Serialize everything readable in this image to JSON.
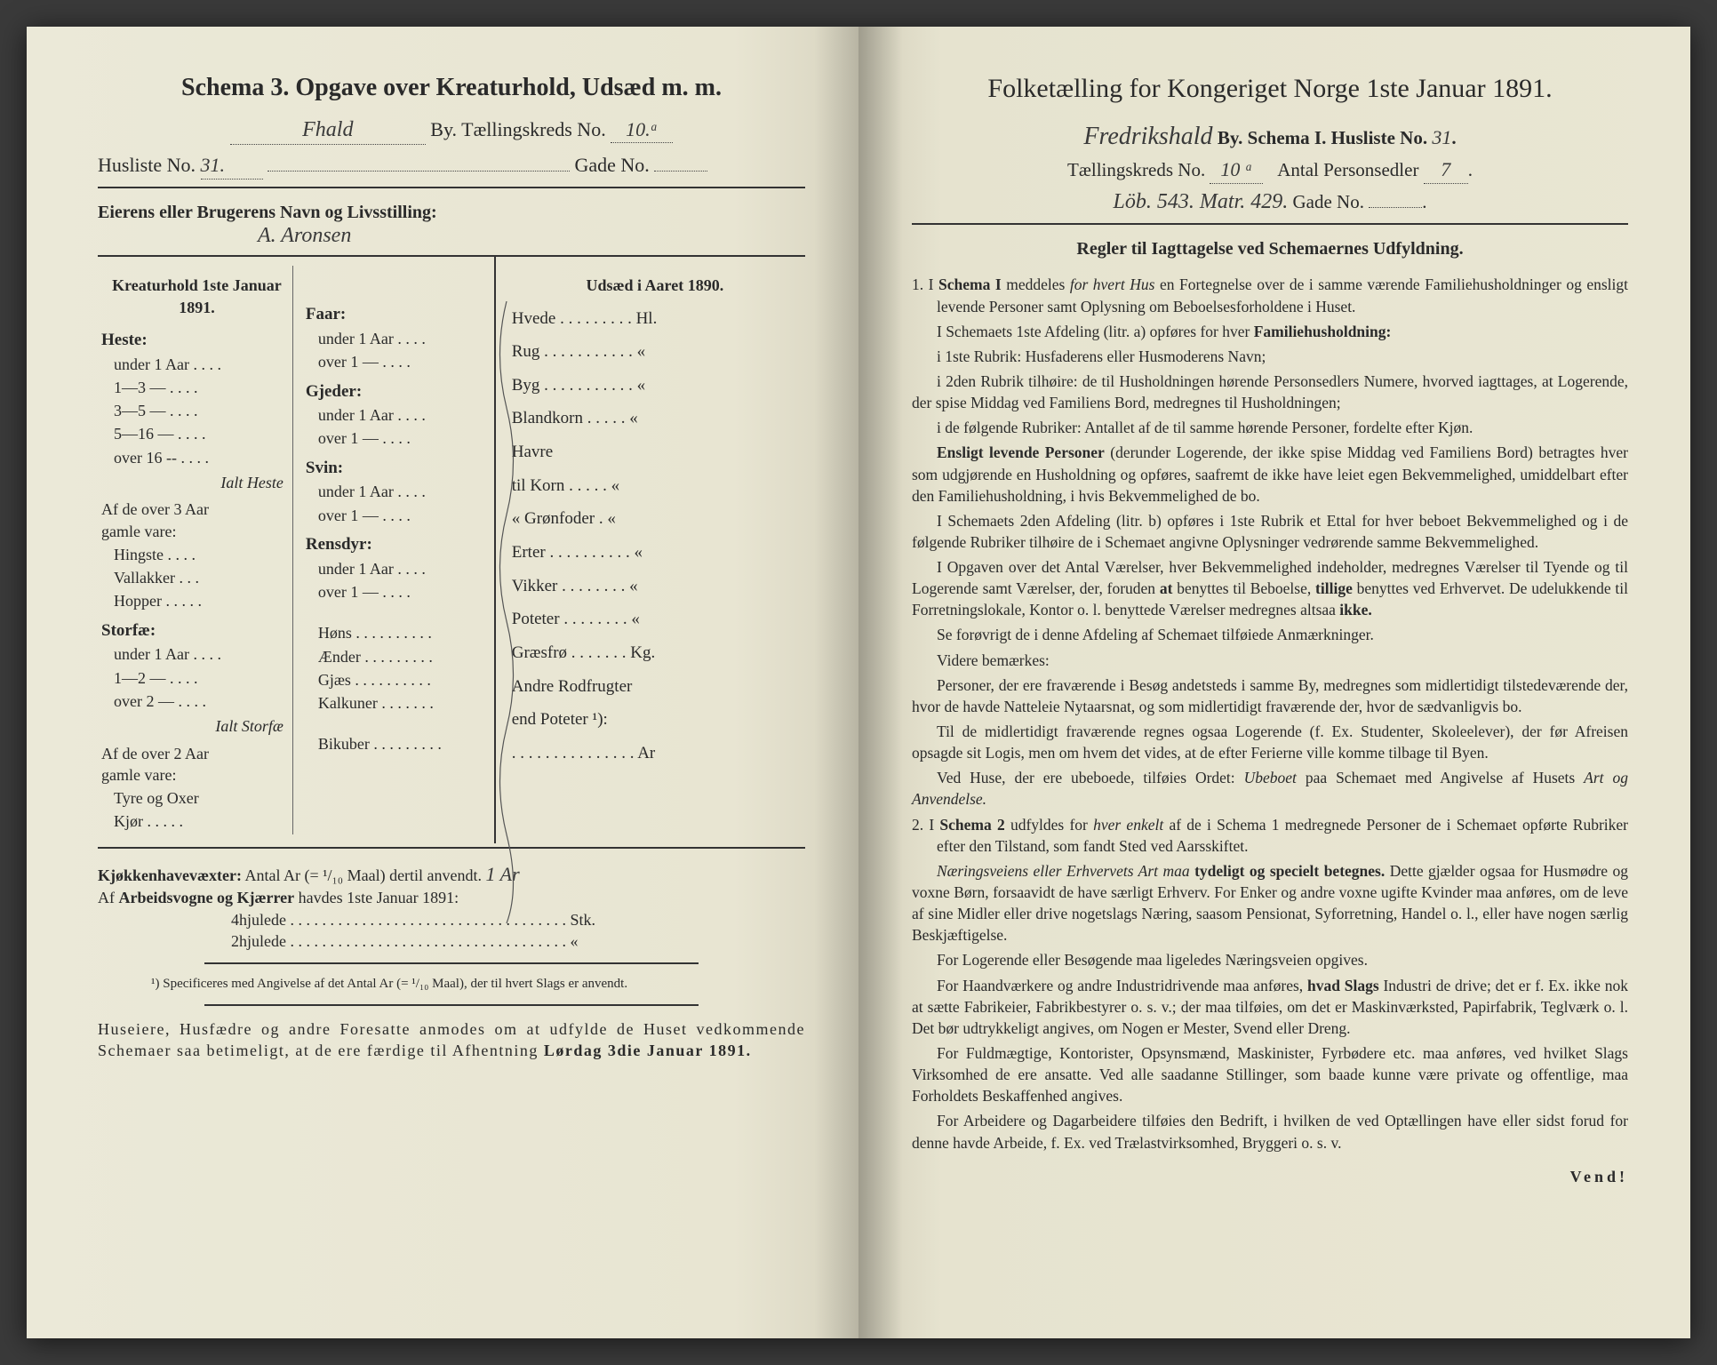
{
  "colors": {
    "paper_left": "#e8e5d2",
    "paper_right": "#e9e6d3",
    "ink": "#2a2a2a",
    "background": "#3a3a3a"
  },
  "left": {
    "title": "Schema 3.  Opgave over Kreaturhold, Udsæd m. m.",
    "by_hand": "Fhald",
    "by_label": "By.  Tællingskreds No.",
    "kreds_no": "10.ᵃ",
    "husliste_label": "Husliste No.",
    "husliste_no": "31.",
    "gade_label": "Gade No.",
    "owner_label": "Eierens eller Brugerens Navn og Livsstilling:",
    "owner_hand": "A. Aronsen",
    "colhead_left": "Kreaturhold 1ste Januar 1891.",
    "colhead_right": "Udsæd i Aaret 1890.",
    "cats_left_a": [
      {
        "h": "Heste:",
        "rows": [
          "under 1 Aar . . . .",
          "1—3   —   . . . .",
          "3—5   —   . . . .",
          "5—16 —   . . . .",
          "over 16 --   . . . ."
        ]
      },
      {
        "ital": "Ialt Heste"
      },
      {
        "plain": "Af de over 3 Aar"
      },
      {
        "plain": "gamle vare:"
      },
      {
        "rows": [
          "Hingste . . . .",
          "Vallakker . . .",
          "Hopper . . . . ."
        ]
      },
      {
        "h": "Storfæ:",
        "rows": [
          "under 1 Aar . . . .",
          "1—2   —   . . . .",
          "over 2   —   . . . ."
        ]
      },
      {
        "ital": "Ialt Storfæ"
      },
      {
        "plain": "Af de over 2 Aar"
      },
      {
        "plain": "gamle vare:"
      },
      {
        "rows": [
          "Tyre og Oxer",
          "Kjør . . . . ."
        ]
      }
    ],
    "cats_left_b": [
      {
        "h": "Faar:",
        "rows": [
          "under 1 Aar . . . .",
          "over 1   —   . . . ."
        ]
      },
      {
        "h": "Gjeder:",
        "rows": [
          "under 1 Aar . . . .",
          "over 1   —   . . . ."
        ]
      },
      {
        "h": "Svin:",
        "rows": [
          "under 1 Aar . . . .",
          "over 1   —   . . . ."
        ]
      },
      {
        "h": "Rensdyr:",
        "rows": [
          "under 1 Aar . . . .",
          "over 1   —   . . . ."
        ]
      },
      {
        "gap": true
      },
      {
        "rows": [
          "Høns . . . . . . . . . .",
          "Ænder . . . . . . . . .",
          "Gjæs . . . . . . . . . .",
          "Kalkuner . . . . . . ."
        ]
      },
      {
        "gap": true
      },
      {
        "rows": [
          "Bikuber . . . . . . . . ."
        ]
      }
    ],
    "udsaed": [
      "Hvede . . . . . . . . . Hl.",
      "Rug . . . . . . . . . . .  «",
      "Byg . . . . . . . . . . .  «",
      "Blandkorn . . . . .  «",
      "Havre",
      "   til Korn . . . . .  «",
      "   «   Grønfoder .  «",
      "Erter . . . . . . . . . .  «",
      "Vikker  . . . . . . . .  «",
      "Poteter . . . . . . . .  «",
      "Græsfrø . . . . . . . Kg.",
      "Andre Rodfrugter",
      "end Poteter ¹):",
      ". . . . . . . . . . . . . . . Ar"
    ],
    "kjokken_label": "Kjøkkenhavevæxter:",
    "kjokken_text": "Antal Ar (= ¹/₁₀ Maal) dertil anvendt.",
    "kjokken_hand": "1 Ar",
    "arbeid_label": "Af Arbeidsvogne og Kjærrer havdes 1ste Januar 1891:",
    "hjul4": "4hjulede . . . . . . . . . . . . . . . . . . . . . . . . . . . . . . . . . . . Stk.",
    "hjul2": "2hjulede . . . . . . . . . . . . . . . . . . . . . . . . . . . . . . . . . . .  «",
    "footnote": "¹) Specificeres med Angivelse af det Antal Ar (= ¹/₁₀ Maal), der til hvert Slags er anvendt.",
    "bottom1": "Huseiere, Husfædre og andre Foresatte anmodes om at udfylde de Huset vedkommende Schemaer saa betimeligt, at de ere færdige til Afhentning",
    "bottom2": "Lørdag 3die Januar 1891."
  },
  "right": {
    "title": "Folketælling for Kongeriget Norge 1ste Januar 1891.",
    "line1_hand": "Fredrikshald",
    "line1_rest": "By.  Schema I.  Husliste No.",
    "husliste_no": "31",
    "line2a": "Tællingskreds No.",
    "kreds_no": "10 ᵃ",
    "line2b": "Antal Personsedler",
    "pers_no": "7",
    "line3_hand": "Löb. 543. Matr. 429.",
    "line3_rest": "Gade No.",
    "rules_head": "Regler til Iagttagelse ved Schemaernes Udfyldning.",
    "paras": [
      {
        "n": "1.",
        "t": "I <b>Schema I</b> meddeles <i>for hvert Hus</i> en Fortegnelse over de i samme værende Familiehusholdninger og ensligt levende Personer samt Oplysning om Beboelsesforholdene i Huset."
      },
      {
        "t": "I Schemaets 1ste Afdeling (litr. a) opføres for hver <b>Familiehusholdning:</b>"
      },
      {
        "t": "i 1ste Rubrik: Husfaderens eller Husmoderens Navn;"
      },
      {
        "t": "i 2den Rubrik tilhøire: de til Husholdningen hørende Personsedlers Numere, hvorved iagttages, at Logerende, der spise Middag ved Familiens Bord, medregnes til Husholdningen;"
      },
      {
        "t": "i de følgende Rubriker: Antallet af de til samme hørende Personer, fordelte efter Kjøn."
      },
      {
        "t": "<b>Ensligt levende Personer</b> (derunder Logerende, der ikke spise Middag ved Familiens Bord) betragtes hver som udgjørende en Husholdning og opføres, saafremt de ikke have leiet egen Bekvemmelighed, umiddelbart efter den Familiehusholdning, i hvis Bekvemmelighed de bo."
      },
      {
        "t": "I Schemaets 2den Afdeling (litr. b) opføres i 1ste Rubrik et Ettal for hver beboet Bekvemmelighed og i de følgende Rubriker tilhøire de i Schemaet angivne Oplysninger vedrørende samme Bekvemmelighed."
      },
      {
        "t": "I Opgaven over det Antal Værelser, hver Bekvemmelighed indeholder, medregnes Værelser til Tyende og til Logerende samt Værelser, der, foruden <b>at</b> benyttes til Beboelse, <b>tillige</b> benyttes ved Erhvervet.  De udelukkende til Forretningslokale, Kontor o. l. benyttede Værelser medregnes altsaa <b>ikke.</b>"
      },
      {
        "t": "Se forøvrigt de i denne Afdeling af Schemaet tilføiede Anmærkninger."
      },
      {
        "t": "Videre bemærkes:"
      },
      {
        "t": "Personer, der ere fraværende i Besøg andetsteds i samme By, medregnes som midlertidigt tilstedeværende der, hvor de havde Natteleie Nytaarsnat, og som midlertidigt fraværende der, hvor de sædvanligvis bo."
      },
      {
        "t": "Til de midlertidigt fraværende regnes ogsaa Logerende (f. Ex. Studenter, Skoleelever), der før Afreisen opsagde sit Logis, men om hvem det vides, at de efter Ferierne ville komme tilbage til Byen."
      },
      {
        "t": "Ved Huse, der ere ubeboede, tilføies Ordet: <i>Ubeboet</i> paa Schemaet med Angivelse af Husets <i>Art og Anvendelse.</i>"
      },
      {
        "n": "2.",
        "t": "I <b>Schema 2</b> udfyldes for <i>hver enkelt</i> af de i Schema 1 medregnede Personer de i Schemaet opførte Rubriker efter den Tilstand, som fandt Sted ved Aarsskiftet."
      },
      {
        "t": "<i>Næringsveiens eller Erhvervets Art maa</i> <b>tydeligt og specielt betegnes.</b> Dette gjælder ogsaa for Husmødre og voxne Børn, forsaavidt de have særligt Erhverv.  For Enker og andre voxne ugifte Kvinder maa anføres, om de leve af sine Midler eller drive nogetslags Næring, saasom Pensionat, Syforretning, Handel o. l., eller have nogen særlig Beskjæftigelse."
      },
      {
        "t": "For Logerende eller Besøgende maa ligeledes Næringsveien opgives."
      },
      {
        "t": "For Haandværkere og andre Industridrivende maa anføres, <b>hvad Slags</b> Industri de drive; det er f. Ex. ikke nok at sætte Fabrikeier, Fabrikbestyrer o. s. v.; der maa tilføies, om det er Maskinværksted, Papirfabrik, Teglværk o. l.  Det bør udtrykkeligt angives, om Nogen er Mester, Svend eller Dreng."
      },
      {
        "t": "For Fuldmægtige, Kontorister, Opsynsmænd, Maskinister, Fyrbødere etc. maa anføres, ved hvilket Slags Virksomhed de ere ansatte.  Ved alle saadanne Stillinger, som baade kunne være private og offentlige, maa Forholdets Beskaffenhed angives."
      },
      {
        "t": "For Arbeidere og Dagarbeidere tilføies den Bedrift, i hvilken de ved Optællingen have eller sidst forud for denne havde Arbeide, f. Ex. ved Trælastvirksomhed, Bryggeri o. s. v."
      }
    ],
    "vend": "Vend!"
  }
}
